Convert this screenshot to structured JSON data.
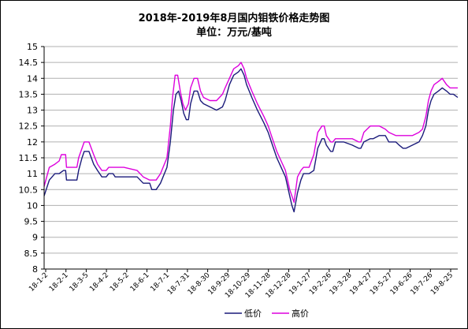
{
  "title": "2018年-2019年8月国内钼铁价格走势图",
  "subtitle": "单位：万元/基吨",
  "chart_data": {
    "type": "line",
    "title": "2018年-2019年8月国内钼铁价格走势图",
    "subtitle": "单位：万元/基吨",
    "ylim": [
      8,
      15
    ],
    "yticks": [
      "8",
      "8.5",
      "9",
      "9.5",
      "10",
      "10.5",
      "11",
      "11.5",
      "12",
      "12.5",
      "13",
      "13.5",
      "14",
      "14.5",
      "15"
    ],
    "xticks": [
      "18-1-2",
      "18-2-1",
      "18-3-5",
      "18-4-2",
      "18-5-2",
      "18-6-1",
      "18-7-1",
      "18-7-31",
      "18-8-30",
      "18-9-29",
      "18-10-29",
      "18-11-28",
      "18-12-28",
      "19-1-27",
      "19-2-26",
      "19-3-28",
      "19-4-27",
      "19-5-27",
      "19-6-26",
      "19-7-26",
      "19-8-25"
    ],
    "grid": true,
    "legend": "bottom",
    "series": [
      {
        "name": "低价",
        "color": "#1a1a7a",
        "points": [
          [
            0,
            10.3
          ],
          [
            1.2,
            10.8
          ],
          [
            2.5,
            11.0
          ],
          [
            3.5,
            11.0
          ],
          [
            4.5,
            11.1
          ],
          [
            5.0,
            11.1
          ],
          [
            5.2,
            10.8
          ],
          [
            6.5,
            10.8
          ],
          [
            7.6,
            10.8
          ],
          [
            8.0,
            11.1
          ],
          [
            8.8,
            11.5
          ],
          [
            9.3,
            11.7
          ],
          [
            10.4,
            11.7
          ],
          [
            11.5,
            11.3
          ],
          [
            12.4,
            11.1
          ],
          [
            13.4,
            10.9
          ],
          [
            14.4,
            10.9
          ],
          [
            15.0,
            11.0
          ],
          [
            16.0,
            11.0
          ],
          [
            16.5,
            10.9
          ],
          [
            18.5,
            10.9
          ],
          [
            21.6,
            10.9
          ],
          [
            23.0,
            10.7
          ],
          [
            24.5,
            10.7
          ],
          [
            25.0,
            10.5
          ],
          [
            26.0,
            10.5
          ],
          [
            27.0,
            10.7
          ],
          [
            28.5,
            11.2
          ],
          [
            29.3,
            12.0
          ],
          [
            30.0,
            13.0
          ],
          [
            30.6,
            13.5
          ],
          [
            31.2,
            13.6
          ],
          [
            31.8,
            13.3
          ],
          [
            32.4,
            12.9
          ],
          [
            33.0,
            12.7
          ],
          [
            33.5,
            12.7
          ],
          [
            34.0,
            13.2
          ],
          [
            34.8,
            13.6
          ],
          [
            35.6,
            13.6
          ],
          [
            36.3,
            13.3
          ],
          [
            37.0,
            13.2
          ],
          [
            38.5,
            13.1
          ],
          [
            40.0,
            13.0
          ],
          [
            41.4,
            13.1
          ],
          [
            42.0,
            13.3
          ],
          [
            43.0,
            13.8
          ],
          [
            44.0,
            14.1
          ],
          [
            45.1,
            14.2
          ],
          [
            45.7,
            14.3
          ],
          [
            46.4,
            14.1
          ],
          [
            47.0,
            13.8
          ],
          [
            47.6,
            13.6
          ],
          [
            48.2,
            13.4
          ],
          [
            49.5,
            13.0
          ],
          [
            51.0,
            12.6
          ],
          [
            52.0,
            12.3
          ],
          [
            53.0,
            11.9
          ],
          [
            54.0,
            11.5
          ],
          [
            55.0,
            11.2
          ],
          [
            56.0,
            10.9
          ],
          [
            57.0,
            10.3
          ],
          [
            57.5,
            10.0
          ],
          [
            58.0,
            9.8
          ],
          [
            58.8,
            10.4
          ],
          [
            59.6,
            10.8
          ],
          [
            60.2,
            11.0
          ],
          [
            61.5,
            11.0
          ],
          [
            62.6,
            11.1
          ],
          [
            63.5,
            11.8
          ],
          [
            64.5,
            12.1
          ],
          [
            65.0,
            12.1
          ],
          [
            65.5,
            11.9
          ],
          [
            66.5,
            11.7
          ],
          [
            67.0,
            11.7
          ],
          [
            67.6,
            12.0
          ],
          [
            69.5,
            12.0
          ],
          [
            71.5,
            11.9
          ],
          [
            73.0,
            11.8
          ],
          [
            73.5,
            11.8
          ],
          [
            74.2,
            12.0
          ],
          [
            75.7,
            12.1
          ],
          [
            76.4,
            12.1
          ],
          [
            77.8,
            12.2
          ],
          [
            79.2,
            12.2
          ],
          [
            80.0,
            12.0
          ],
          [
            81.6,
            12.0
          ],
          [
            82.4,
            11.9
          ],
          [
            83.3,
            11.8
          ],
          [
            84.0,
            11.8
          ],
          [
            85.5,
            11.9
          ],
          [
            87.0,
            12.0
          ],
          [
            87.8,
            12.2
          ],
          [
            88.6,
            12.5
          ],
          [
            89.2,
            13.0
          ],
          [
            89.8,
            13.3
          ],
          [
            90.5,
            13.5
          ],
          [
            91.5,
            13.6
          ],
          [
            92.4,
            13.7
          ],
          [
            93.4,
            13.6
          ],
          [
            94.2,
            13.5
          ],
          [
            95.0,
            13.5
          ],
          [
            96.0,
            13.4
          ]
        ]
      },
      {
        "name": "高价",
        "color": "#dd00dd",
        "points": [
          [
            0,
            10.6
          ],
          [
            1.2,
            11.2
          ],
          [
            2.5,
            11.3
          ],
          [
            3.5,
            11.4
          ],
          [
            4.0,
            11.6
          ],
          [
            5.0,
            11.6
          ],
          [
            5.2,
            11.2
          ],
          [
            6.5,
            11.2
          ],
          [
            7.6,
            11.2
          ],
          [
            8.0,
            11.5
          ],
          [
            8.8,
            11.8
          ],
          [
            9.3,
            12.0
          ],
          [
            10.4,
            12.0
          ],
          [
            11.5,
            11.6
          ],
          [
            12.4,
            11.3
          ],
          [
            13.4,
            11.1
          ],
          [
            14.4,
            11.1
          ],
          [
            15.0,
            11.2
          ],
          [
            16.0,
            11.2
          ],
          [
            16.5,
            11.2
          ],
          [
            18.5,
            11.2
          ],
          [
            21.6,
            11.1
          ],
          [
            23.0,
            10.9
          ],
          [
            24.5,
            10.8
          ],
          [
            25.0,
            10.8
          ],
          [
            26.0,
            10.8
          ],
          [
            27.0,
            11.0
          ],
          [
            28.5,
            11.5
          ],
          [
            29.3,
            12.5
          ],
          [
            29.8,
            13.4
          ],
          [
            30.4,
            14.1
          ],
          [
            31.0,
            14.1
          ],
          [
            31.6,
            13.6
          ],
          [
            32.2,
            13.2
          ],
          [
            32.8,
            13.0
          ],
          [
            33.5,
            13.2
          ],
          [
            34.0,
            13.7
          ],
          [
            34.8,
            14.0
          ],
          [
            35.6,
            14.0
          ],
          [
            36.3,
            13.6
          ],
          [
            37.0,
            13.4
          ],
          [
            38.5,
            13.3
          ],
          [
            40.0,
            13.3
          ],
          [
            41.4,
            13.5
          ],
          [
            42.0,
            13.7
          ],
          [
            43.0,
            14.0
          ],
          [
            44.0,
            14.3
          ],
          [
            45.1,
            14.4
          ],
          [
            45.7,
            14.5
          ],
          [
            46.4,
            14.3
          ],
          [
            47.0,
            14.0
          ],
          [
            47.6,
            13.8
          ],
          [
            48.2,
            13.6
          ],
          [
            49.5,
            13.2
          ],
          [
            51.0,
            12.8
          ],
          [
            52.0,
            12.5
          ],
          [
            53.0,
            12.1
          ],
          [
            54.0,
            11.7
          ],
          [
            55.0,
            11.4
          ],
          [
            56.0,
            11.1
          ],
          [
            57.0,
            10.5
          ],
          [
            57.5,
            10.3
          ],
          [
            58.0,
            10.1
          ],
          [
            58.8,
            10.9
          ],
          [
            59.6,
            11.1
          ],
          [
            60.2,
            11.2
          ],
          [
            61.5,
            11.2
          ],
          [
            62.6,
            11.6
          ],
          [
            63.5,
            12.3
          ],
          [
            64.5,
            12.5
          ],
          [
            65.0,
            12.5
          ],
          [
            65.5,
            12.2
          ],
          [
            66.5,
            12.0
          ],
          [
            67.0,
            12.0
          ],
          [
            67.6,
            12.1
          ],
          [
            69.5,
            12.1
          ],
          [
            71.5,
            12.1
          ],
          [
            73.0,
            12.0
          ],
          [
            73.5,
            12.0
          ],
          [
            74.2,
            12.3
          ],
          [
            75.7,
            12.5
          ],
          [
            76.4,
            12.5
          ],
          [
            77.8,
            12.5
          ],
          [
            79.2,
            12.4
          ],
          [
            80.0,
            12.3
          ],
          [
            81.6,
            12.2
          ],
          [
            82.4,
            12.2
          ],
          [
            83.3,
            12.2
          ],
          [
            84.0,
            12.2
          ],
          [
            85.5,
            12.2
          ],
          [
            87.0,
            12.3
          ],
          [
            87.8,
            12.4
          ],
          [
            88.6,
            12.8
          ],
          [
            89.2,
            13.3
          ],
          [
            89.8,
            13.6
          ],
          [
            90.5,
            13.8
          ],
          [
            91.5,
            13.9
          ],
          [
            92.4,
            14.0
          ],
          [
            93.4,
            13.8
          ],
          [
            94.2,
            13.7
          ],
          [
            95.0,
            13.7
          ],
          [
            96.0,
            13.7
          ]
        ]
      }
    ]
  }
}
